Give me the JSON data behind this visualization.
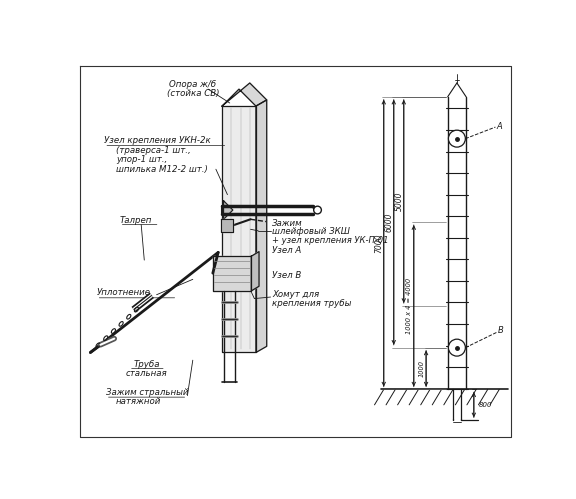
{
  "bg_color": "#ffffff",
  "line_color": "#1a1a1a",
  "text_color": "#1a1a1a",
  "fig_width": 5.76,
  "fig_height": 4.99,
  "dpi": 100,
  "labels": {
    "oppora": "Опора ж/б",
    "oppora2": "(стойка СВ)",
    "uzel_ukn": "Узел крепления УКН-2к",
    "uzel_ukn2": "(траверса-1 шт.,",
    "uzel_ukn3": "упор-1 шт.,",
    "uzel_ukn4": "шпилька М12-2 шт.)",
    "talrep": "Талреп",
    "uplotnenie": "Уплотнение",
    "truba": "Труба",
    "truba2": "стальная",
    "zazim_str": "Зажим стральный",
    "zazim_str2": "натяжной",
    "zazim_shv": "Зажим",
    "zazim_shv2": "шлейфовый ЗКШ",
    "zazim_shv3": "+ узел крепления УК-П-01",
    "uzel_a": "Узел А",
    "uzel_b": "Узел В",
    "khomut": "Хомут для",
    "khomut2": "крепления трубы"
  },
  "dim_7000": "7000",
  "dim_6000": "6000",
  "dim_5000": "5000",
  "dim_4000": "1000 х 4 = 4000",
  "dim_1000": "1000",
  "dim_800": "800",
  "label_A": "А",
  "label_B": "В"
}
